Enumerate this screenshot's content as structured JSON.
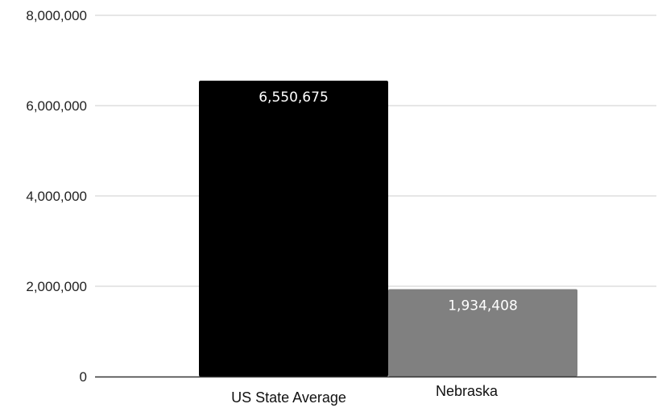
{
  "chart_data": {
    "type": "bar",
    "title": "",
    "xlabel": "",
    "ylabel": "",
    "categories": [
      "US State Average",
      "Nebraska"
    ],
    "values": [
      6550675,
      1934408
    ],
    "data_labels": [
      "6,550,675",
      "1,934,408"
    ],
    "bar_colors": [
      "#000000",
      "#808080"
    ],
    "ylim": [
      0,
      8000000
    ],
    "yticks": [
      0,
      2000000,
      4000000,
      6000000,
      8000000
    ],
    "ytick_labels": [
      "0",
      "2,000,000",
      "4,000,000",
      "6,000,000",
      "8,000,000"
    ],
    "grid": true,
    "legend": "none",
    "colors": {
      "grid": "#cccccc",
      "axis": "#333333",
      "label_text": "#ffffff"
    }
  }
}
